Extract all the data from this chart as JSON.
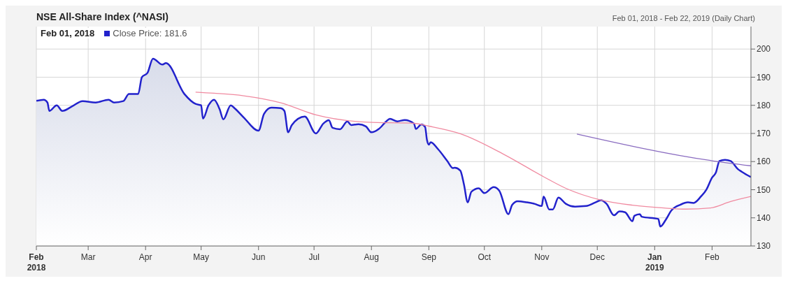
{
  "chart_data": {
    "type": "line",
    "title": "NSE All-Share Index (^NASI)",
    "subtitle": "Feb 01, 2018 - Feb 22, 2019 (Daily Chart)",
    "annotations": [
      "Feb 01, 2018"
    ],
    "xlim": [
      "2018-02-01",
      "2019-02-22"
    ],
    "xticks": [
      {
        "value": "2018-02-01",
        "label": "Feb 2018"
      },
      {
        "value": "2018-03-01",
        "label": "Mar"
      },
      {
        "value": "2018-04-01",
        "label": "Apr"
      },
      {
        "value": "2018-05-01",
        "label": "May"
      },
      {
        "value": "2018-06-01",
        "label": "Jun"
      },
      {
        "value": "2018-07-01",
        "label": "Jul"
      },
      {
        "value": "2018-08-01",
        "label": "Aug"
      },
      {
        "value": "2018-09-01",
        "label": "Sep"
      },
      {
        "value": "2018-10-01",
        "label": "Oct"
      },
      {
        "value": "2018-11-01",
        "label": "Nov"
      },
      {
        "value": "2018-12-01",
        "label": "Dec"
      },
      {
        "value": "2019-01-01",
        "label": "Jan 2019"
      },
      {
        "value": "2019-02-01",
        "label": "Feb"
      }
    ],
    "ylim": [
      130,
      208
    ],
    "yticks": [
      130,
      140,
      150,
      160,
      170,
      180,
      190,
      200
    ],
    "grid": true,
    "legend": "top left",
    "marker": "none",
    "line_style": "solid",
    "series": [
      {
        "type": "area",
        "name": "Close Price: 181.6",
        "color": "#2222cc",
        "x": [
          "2018-02-01",
          "2018-02-05",
          "2018-02-07",
          "2018-02-08",
          "2018-02-12",
          "2018-02-15",
          "2018-02-20",
          "2018-02-26",
          "2018-03-05",
          "2018-03-12",
          "2018-03-15",
          "2018-03-20",
          "2018-03-23",
          "2018-03-28",
          "2018-03-30",
          "2018-04-02",
          "2018-04-05",
          "2018-04-10",
          "2018-04-12",
          "2018-04-22",
          "2018-04-28",
          "2018-05-01",
          "2018-05-02",
          "2018-05-05",
          "2018-05-08",
          "2018-05-11",
          "2018-05-13",
          "2018-05-17",
          "2018-05-19",
          "2018-05-24",
          "2018-06-01",
          "2018-06-04",
          "2018-06-08",
          "2018-06-13",
          "2018-06-15",
          "2018-06-17",
          "2018-06-19",
          "2018-06-26",
          "2018-07-02",
          "2018-07-06",
          "2018-07-09",
          "2018-07-11",
          "2018-07-15",
          "2018-07-19",
          "2018-07-21",
          "2018-07-25",
          "2018-07-29",
          "2018-08-01",
          "2018-08-05",
          "2018-08-09",
          "2018-08-11",
          "2018-08-15",
          "2018-08-19",
          "2018-08-24",
          "2018-08-25",
          "2018-08-28",
          "2018-08-30",
          "2018-08-31",
          "2018-09-01",
          "2018-09-02",
          "2018-09-06",
          "2018-09-11",
          "2018-09-14",
          "2018-09-15",
          "2018-09-18",
          "2018-09-20",
          "2018-09-22",
          "2018-09-24",
          "2018-09-28",
          "2018-10-01",
          "2018-10-06",
          "2018-10-09",
          "2018-10-14",
          "2018-10-16",
          "2018-10-19",
          "2018-10-24",
          "2018-10-28",
          "2018-11-01",
          "2018-11-02",
          "2018-11-05",
          "2018-11-07",
          "2018-11-10",
          "2018-11-14",
          "2018-11-19",
          "2018-11-25",
          "2018-11-30",
          "2018-12-03",
          "2018-12-06",
          "2018-12-10",
          "2018-12-13",
          "2018-12-16",
          "2018-12-20",
          "2018-12-21",
          "2018-12-24",
          "2018-12-25",
          "2019-01-03",
          "2019-01-04",
          "2019-01-07",
          "2019-01-10",
          "2019-01-15",
          "2019-01-19",
          "2019-01-22",
          "2019-01-26",
          "2019-01-29",
          "2019-02-01",
          "2019-02-03",
          "2019-02-05",
          "2019-02-08",
          "2019-02-11",
          "2019-02-15",
          "2019-02-17",
          "2019-02-22"
        ],
        "values": [
          181.6,
          182,
          181,
          178,
          180,
          178,
          179.5,
          181.5,
          181,
          182,
          181,
          181.5,
          184,
          184,
          190,
          191.5,
          196.6,
          194.5,
          195,
          184,
          180.5,
          180,
          175.3,
          180,
          182,
          178.6,
          175,
          180,
          179,
          175.7,
          171,
          177,
          179.2,
          179,
          178,
          170.4,
          173,
          176,
          170,
          173.5,
          174.7,
          172,
          171.5,
          174.3,
          173,
          173.3,
          172.5,
          170.4,
          171.6,
          174.3,
          175.2,
          174.3,
          174.8,
          173.5,
          171.6,
          173.2,
          172.3,
          167.7,
          166,
          166.9,
          164.4,
          160.2,
          157.7,
          157.8,
          156.8,
          151.8,
          145.5,
          149.3,
          150.5,
          148.8,
          150.9,
          149.7,
          141.3,
          144.6,
          145.9,
          145.5,
          145,
          144.2,
          147.6,
          143,
          143,
          147.2,
          145,
          144,
          144.2,
          145.5,
          146.3,
          145,
          140.9,
          142.3,
          142,
          138.8,
          140.7,
          141.3,
          140.4,
          139.6,
          136.9,
          139.3,
          142.6,
          144.7,
          145.5,
          145.3,
          147.6,
          150.1,
          154.3,
          156,
          160.2,
          160.6,
          160.2,
          157.3,
          156.4,
          154.5
        ]
      },
      {
        "color": "#f08aa0",
        "x": [
          "2018-04-28",
          "2018-05-08",
          "2018-05-24",
          "2018-06-13",
          "2018-07-02",
          "2018-07-30",
          "2018-08-24",
          "2018-09-01",
          "2018-09-18",
          "2018-10-12",
          "2018-11-02",
          "2018-11-14",
          "2018-12-02",
          "2018-12-20",
          "2019-01-06",
          "2019-01-18",
          "2019-01-31",
          "2019-02-11",
          "2019-02-22"
        ],
        "values": [
          184.7,
          184.3,
          183.4,
          180.9,
          176.6,
          174,
          173.6,
          172.6,
          169.9,
          162.4,
          154.6,
          150.5,
          146.5,
          144.5,
          143.5,
          143.1,
          143.5,
          145.8,
          147.6
        ]
      },
      {
        "color": "#8a6cc0",
        "x": [
          "2018-11-20",
          "2019-02-01",
          "2019-02-22"
        ],
        "values": [
          169.8,
          160.3,
          158.5
        ]
      }
    ]
  }
}
